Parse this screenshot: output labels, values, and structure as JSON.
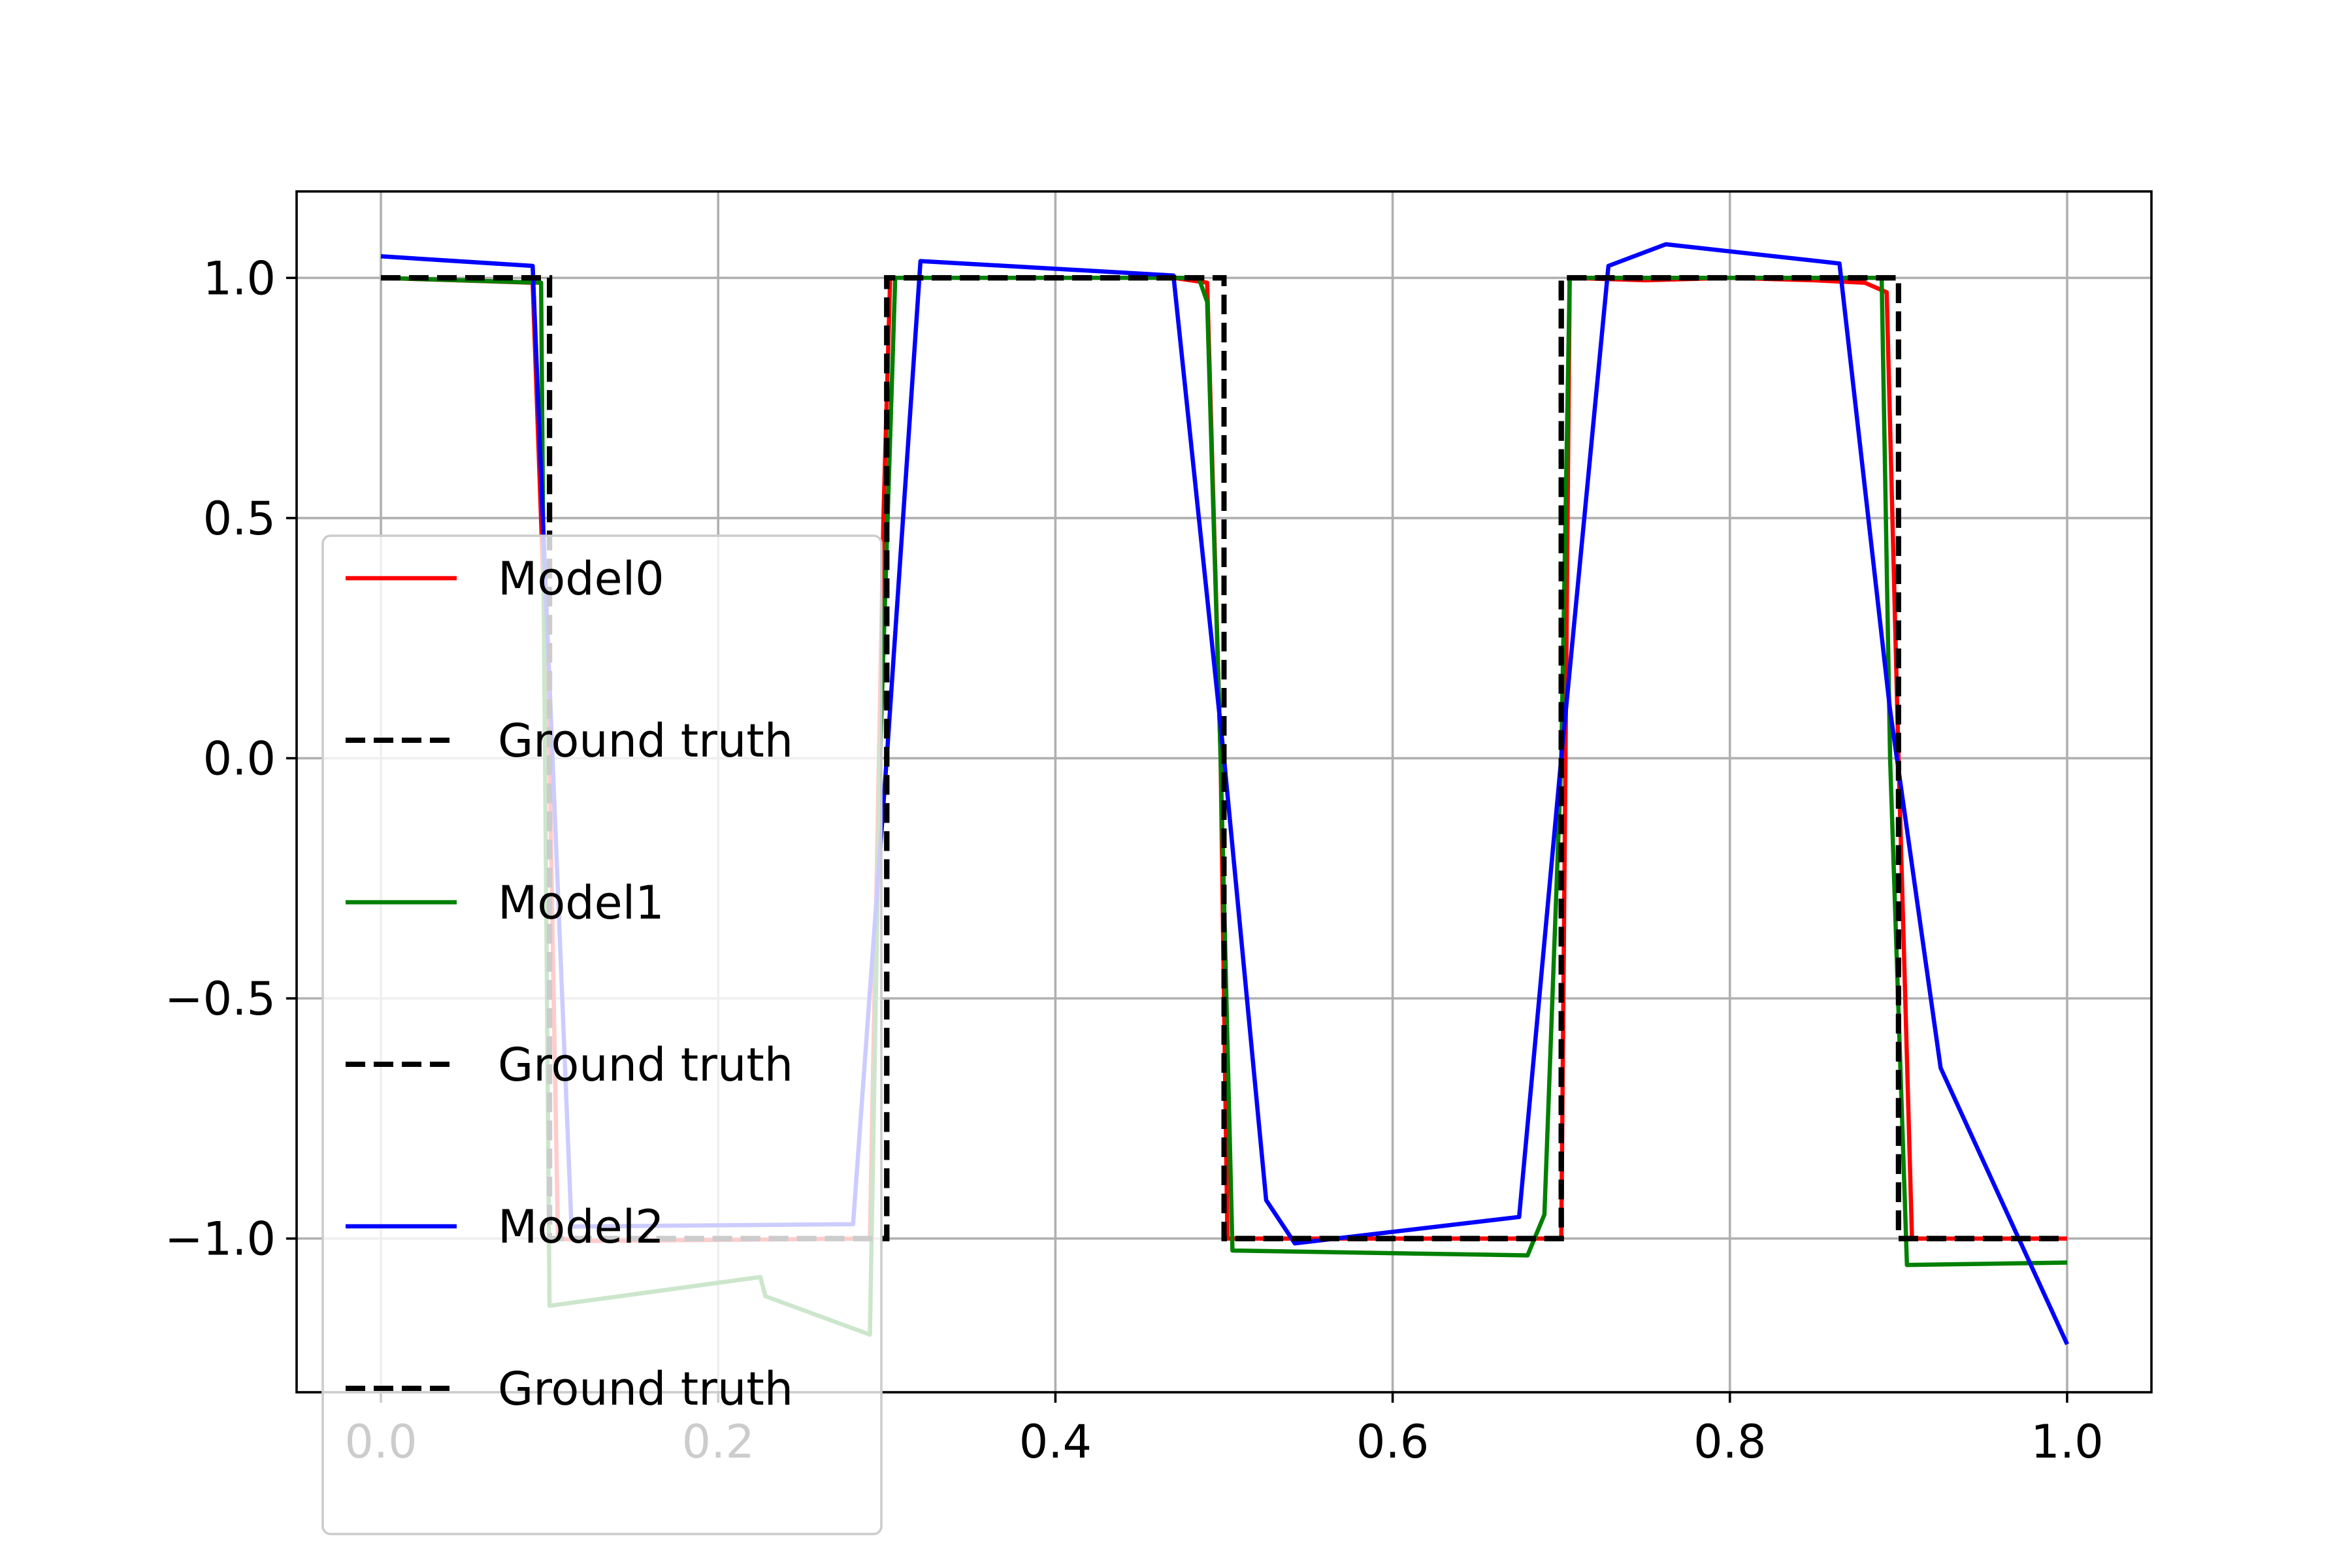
{
  "chart_data": {
    "type": "line",
    "title": "",
    "xlabel": "",
    "ylabel": "",
    "xlim": [
      -0.05,
      1.05
    ],
    "ylim": [
      -1.32,
      1.18
    ],
    "xticks": [
      0.0,
      0.2,
      0.4,
      0.6,
      0.8,
      1.0
    ],
    "xtick_labels": [
      "0.0",
      "0.2",
      "0.4",
      "0.6",
      "0.8",
      "1.0"
    ],
    "yticks": [
      -1.0,
      -0.5,
      0.0,
      0.5,
      1.0
    ],
    "ytick_labels": [
      "−1.0",
      "−0.5",
      "0.0",
      "0.5",
      "1.0"
    ],
    "grid": true,
    "legend_position": "center-left",
    "series": [
      {
        "name": "Model0",
        "color": "#ff0000",
        "style": "solid",
        "points": [
          [
            0.0,
            1.0
          ],
          [
            0.09,
            0.99
          ],
          [
            0.1,
            0.0
          ],
          [
            0.105,
            -1.0
          ],
          [
            0.125,
            -1.005
          ],
          [
            0.29,
            -1.0
          ],
          [
            0.298,
            0.5
          ],
          [
            0.302,
            1.0
          ],
          [
            0.47,
            1.0
          ],
          [
            0.49,
            0.99
          ],
          [
            0.498,
            0.0
          ],
          [
            0.502,
            -1.0
          ],
          [
            0.7,
            -1.0
          ],
          [
            0.705,
            1.0
          ],
          [
            0.75,
            0.995
          ],
          [
            0.8,
            1.0
          ],
          [
            0.85,
            0.995
          ],
          [
            0.88,
            0.99
          ],
          [
            0.893,
            0.97
          ],
          [
            0.9,
            0.0
          ],
          [
            0.908,
            -1.0
          ],
          [
            1.0,
            -1.0
          ]
        ]
      },
      {
        "name": "Ground truth",
        "color": "#000000",
        "style": "dashed",
        "points": [
          [
            0.0,
            1.0
          ],
          [
            0.1,
            1.0
          ],
          [
            0.1,
            -1.0
          ],
          [
            0.3,
            -1.0
          ],
          [
            0.3,
            1.0
          ],
          [
            0.5,
            1.0
          ],
          [
            0.5,
            -1.0
          ],
          [
            0.7,
            -1.0
          ],
          [
            0.7,
            1.0
          ],
          [
            0.9,
            1.0
          ],
          [
            0.9,
            -1.0
          ],
          [
            1.0,
            -1.0
          ]
        ]
      },
      {
        "name": "Model1",
        "color": "#008000",
        "style": "solid",
        "points": [
          [
            0.0,
            1.0
          ],
          [
            0.095,
            0.99
          ],
          [
            0.1,
            -1.14
          ],
          [
            0.225,
            -1.08
          ],
          [
            0.228,
            -1.12
          ],
          [
            0.29,
            -1.2
          ],
          [
            0.296,
            0.0
          ],
          [
            0.305,
            1.0
          ],
          [
            0.485,
            1.0
          ],
          [
            0.49,
            0.95
          ],
          [
            0.498,
            0.0
          ],
          [
            0.505,
            -1.025
          ],
          [
            0.68,
            -1.035
          ],
          [
            0.69,
            -0.95
          ],
          [
            0.7,
            0.0
          ],
          [
            0.705,
            1.0
          ],
          [
            0.89,
            1.0
          ],
          [
            0.895,
            0.0
          ],
          [
            0.905,
            -1.055
          ],
          [
            1.0,
            -1.05
          ]
        ]
      },
      {
        "name": "Ground truth",
        "color": "#000000",
        "style": "dashed",
        "points": [
          [
            0.0,
            1.0
          ],
          [
            0.1,
            1.0
          ],
          [
            0.1,
            -1.0
          ],
          [
            0.3,
            -1.0
          ],
          [
            0.3,
            1.0
          ],
          [
            0.5,
            1.0
          ],
          [
            0.5,
            -1.0
          ],
          [
            0.7,
            -1.0
          ],
          [
            0.7,
            1.0
          ],
          [
            0.9,
            1.0
          ],
          [
            0.9,
            -1.0
          ],
          [
            1.0,
            -1.0
          ]
        ]
      },
      {
        "name": "Model2",
        "color": "#0000ff",
        "style": "solid",
        "points": [
          [
            0.0,
            1.045
          ],
          [
            0.09,
            1.025
          ],
          [
            0.113,
            -0.975
          ],
          [
            0.28,
            -0.97
          ],
          [
            0.3,
            0.0
          ],
          [
            0.32,
            1.035
          ],
          [
            0.47,
            1.005
          ],
          [
            0.5,
            0.0
          ],
          [
            0.525,
            -0.92
          ],
          [
            0.542,
            -1.01
          ],
          [
            0.675,
            -0.955
          ],
          [
            0.7,
            0.0
          ],
          [
            0.728,
            1.025
          ],
          [
            0.762,
            1.07
          ],
          [
            0.865,
            1.03
          ],
          [
            0.895,
            0.1
          ],
          [
            0.925,
            -0.645
          ],
          [
            1.0,
            -1.22
          ]
        ]
      },
      {
        "name": "Ground truth",
        "color": "#000000",
        "style": "dashed",
        "points": [
          [
            0.0,
            1.0
          ],
          [
            0.1,
            1.0
          ],
          [
            0.1,
            -1.0
          ],
          [
            0.3,
            -1.0
          ],
          [
            0.3,
            1.0
          ],
          [
            0.5,
            1.0
          ],
          [
            0.5,
            -1.0
          ],
          [
            0.7,
            -1.0
          ],
          [
            0.7,
            1.0
          ],
          [
            0.9,
            1.0
          ],
          [
            0.9,
            -1.0
          ],
          [
            1.0,
            -1.0
          ]
        ]
      }
    ]
  }
}
